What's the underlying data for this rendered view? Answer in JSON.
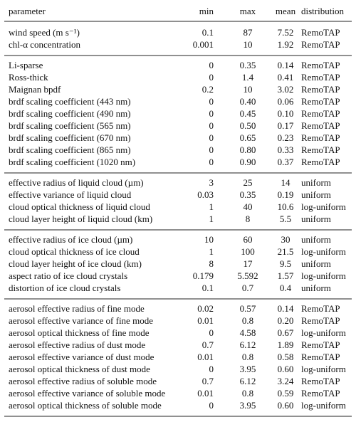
{
  "table": {
    "header": [
      "parameter",
      "min",
      "max",
      "mean",
      "distribution"
    ],
    "groups": [
      {
        "rows": [
          [
            "wind speed (m s⁻¹)",
            "0.1",
            "87",
            "7.52",
            "RemoTAP"
          ],
          [
            "chl-α concentration",
            "0.001",
            "10",
            "1.92",
            "RemoTAP"
          ]
        ]
      },
      {
        "rows": [
          [
            "Li-sparse",
            "0",
            "0.35",
            "0.14",
            "RemoTAP"
          ],
          [
            "Ross-thick",
            "0",
            "1.4",
            "0.41",
            "RemoTAP"
          ],
          [
            "Maignan bpdf",
            "0.2",
            "10",
            "3.02",
            "RemoTAP"
          ],
          [
            "brdf scaling coefficient (443 nm)",
            "0",
            "0.40",
            "0.06",
            "RemoTAP"
          ],
          [
            "brdf scaling coefficient (490 nm)",
            "0",
            "0.45",
            "0.10",
            "RemoTAP"
          ],
          [
            "brdf scaling coefficient (565 nm)",
            "0",
            "0.50",
            "0.17",
            "RemoTAP"
          ],
          [
            "brdf scaling coefficient (670 nm)",
            "0",
            "0.65",
            "0.23",
            "RemoTAP"
          ],
          [
            "brdf scaling coefficient (865 nm)",
            "0",
            "0.80",
            "0.33",
            "RemoTAP"
          ],
          [
            "brdf scaling coefficient (1020 nm)",
            "0",
            "0.90",
            "0.37",
            "RemoTAP"
          ]
        ]
      },
      {
        "rows": [
          [
            "effective radius of liquid cloud (µm)",
            "3",
            "25",
            "14",
            "uniform"
          ],
          [
            "effective variance of liquid cloud",
            "0.03",
            "0.35",
            "0.19",
            "uniform"
          ],
          [
            "cloud optical thickness of liquid cloud",
            "1",
            "40",
            "10.6",
            "log-uniform"
          ],
          [
            "cloud layer height of liquid cloud (km)",
            "1",
            "8",
            "5.5",
            "uniform"
          ]
        ]
      },
      {
        "rows": [
          [
            "effective radius of ice cloud (µm)",
            "10",
            "60",
            "30",
            "uniform"
          ],
          [
            "cloud optical thickness of ice cloud",
            "1",
            "100",
            "21.5",
            "log-uniform"
          ],
          [
            "cloud layer height of ice cloud (km)",
            "8",
            "17",
            "9.5",
            "uniform"
          ],
          [
            "aspect ratio of ice cloud crystals",
            "0.179",
            "5.592",
            "1.57",
            "log-uniform"
          ],
          [
            "distortion of ice cloud crystals",
            "0.1",
            "0.7",
            "0.4",
            "uniform"
          ]
        ]
      },
      {
        "rows": [
          [
            "aerosol effective radius of fine mode",
            "0.02",
            "0.57",
            "0.14",
            "RemoTAP"
          ],
          [
            "aerosol effective variance of fine mode",
            "0.01",
            "0.8",
            "0.20",
            "RemoTAP"
          ],
          [
            "aerosol optical thickness of fine mode",
            "0",
            "4.58",
            "0.67",
            "log-uniform"
          ],
          [
            "aerosol effective radius of dust mode",
            "0.7",
            "6.12",
            "1.89",
            "RemoTAP"
          ],
          [
            "aerosol effective variance of dust mode",
            "0.01",
            "0.8",
            "0.58",
            "RemoTAP"
          ],
          [
            "aerosol optical thickness of dust mode",
            "0",
            "3.95",
            "0.60",
            "log-uniform"
          ],
          [
            "aerosol effective radius of soluble mode",
            "0.7",
            "6.12",
            "3.24",
            "RemoTAP"
          ],
          [
            "aerosol effective variance of soluble mode",
            "0.01",
            "0.8",
            "0.59",
            "RemoTAP"
          ],
          [
            "aerosol optical thickness of soluble mode",
            "0",
            "3.95",
            "0.60",
            "log-uniform"
          ]
        ]
      }
    ]
  }
}
